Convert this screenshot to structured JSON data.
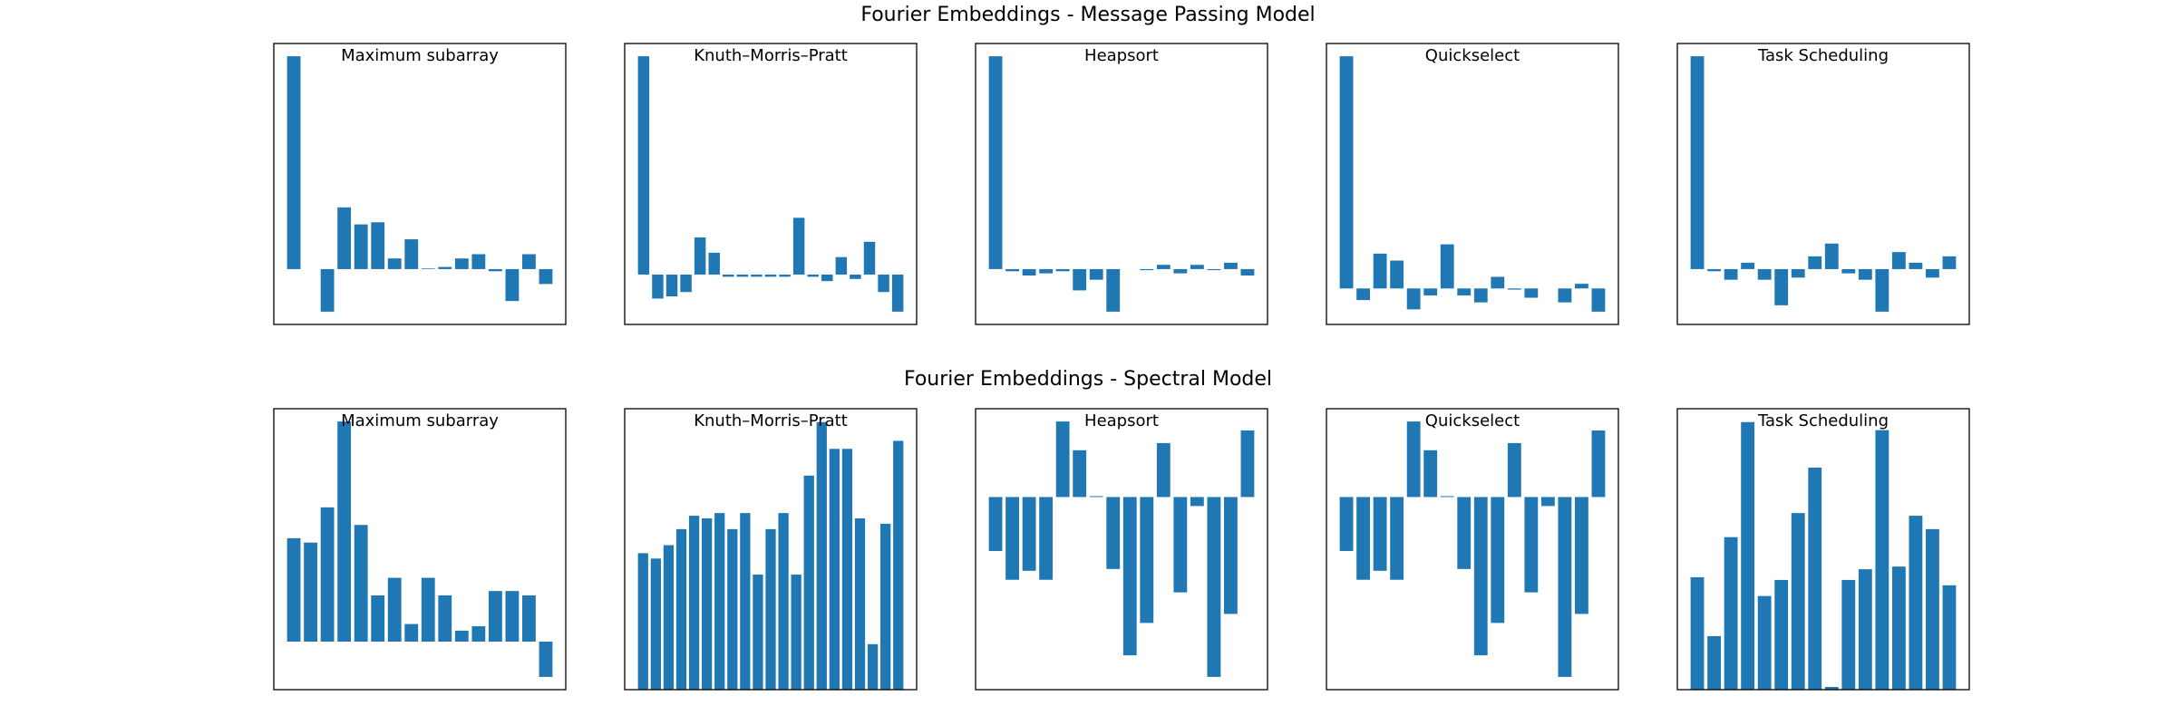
{
  "figure_titles": [
    "Fourier Embeddings - Message Passing Model",
    "Fourier Embeddings - Spectral Model"
  ],
  "chart_data": [
    {
      "type": "bar",
      "title": "Maximum subarray",
      "color": "#1f77b4",
      "ylim": [
        -0.26,
        1.06
      ],
      "values": [
        1.0,
        0,
        -0.2,
        0.29,
        0.21,
        0.22,
        0.05,
        0.14,
        0.003,
        0.01,
        0.05,
        0.07,
        -0.01,
        -0.15,
        0.07,
        -0.07
      ]
    },
    {
      "type": "bar",
      "title": "Knuth–Morris–Pratt",
      "color": "#1f77b4",
      "ylim": [
        -0.2285,
        1.0585
      ],
      "values": [
        1.0,
        -0.11,
        -0.1,
        -0.08,
        0.17,
        0.1,
        -0.01,
        -0.01,
        -0.01,
        -0.01,
        -0.01,
        0.26,
        -0.01,
        -0.03,
        0.08,
        -0.02,
        0.15,
        -0.08,
        -0.17
      ]
    },
    {
      "type": "bar",
      "title": "Heapsort",
      "color": "#1f77b4",
      "ylim": [
        -0.26,
        1.06
      ],
      "values": [
        1.0,
        -0.01,
        -0.03,
        -0.02,
        -0.01,
        -0.1,
        -0.05,
        -0.2,
        0,
        -0.005,
        0.02,
        -0.02,
        0.02,
        -0.005,
        0.03,
        -0.03
      ]
    },
    {
      "type": "bar",
      "title": "Quickselect",
      "color": "#1f77b4",
      "ylim": [
        -0.155,
        1.055
      ],
      "values": [
        1.0,
        -0.05,
        0.15,
        0.12,
        -0.09,
        -0.03,
        0.19,
        -0.03,
        -0.06,
        0.05,
        -0.005,
        -0.04,
        0,
        -0.06,
        0.02,
        -0.1
      ]
    },
    {
      "type": "bar",
      "title": "Task Scheduling",
      "color": "#1f77b4",
      "ylim": [
        -0.26,
        1.06
      ],
      "values": [
        1.0,
        -0.01,
        -0.05,
        0.03,
        -0.05,
        -0.17,
        -0.04,
        0.06,
        0.12,
        -0.02,
        -0.05,
        -0.2,
        0.08,
        0.03,
        -0.04,
        0.06
      ]
    },
    {
      "type": "bar",
      "title": "Maximum subarray",
      "color": "#1f77b4",
      "ylim": [
        -0.218,
        1.058
      ],
      "values": [
        0.47,
        0.45,
        0.61,
        1.0,
        0.53,
        0.21,
        0.29,
        0.08,
        0.29,
        0.21,
        0.05,
        0.07,
        0.23,
        0.23,
        0.21,
        -0.16
      ]
    },
    {
      "type": "bar",
      "title": "Knuth–Morris–Pratt",
      "color": "#1f77b4",
      "ylim": [
        0,
        1.05
      ],
      "values": [
        0.51,
        0.49,
        0.54,
        0.6,
        0.65,
        0.64,
        0.66,
        0.6,
        0.66,
        0.43,
        0.6,
        0.66,
        0.43,
        0.8,
        1.0,
        0.9,
        0.9,
        0.64,
        0.17,
        0.62,
        0.93
      ]
    },
    {
      "type": "bar",
      "title": "Heapsort",
      "color": "#1f77b4",
      "ylim": [
        -1.071,
        0.491
      ],
      "values": [
        -0.3,
        -0.46,
        -0.41,
        -0.46,
        0.42,
        0.26,
        0.005,
        -0.4,
        -0.88,
        -0.7,
        0.3,
        -0.53,
        -0.05,
        -1.0,
        -0.65,
        0.37
      ]
    },
    {
      "type": "bar",
      "title": "Quickselect",
      "color": "#1f77b4",
      "ylim": [
        -1.071,
        0.491
      ],
      "values": [
        -0.3,
        -0.46,
        -0.41,
        -0.46,
        0.42,
        0.26,
        0.005,
        -0.4,
        -0.88,
        -0.7,
        0.3,
        -0.53,
        -0.05,
        -1.0,
        -0.65,
        0.37
      ]
    },
    {
      "type": "bar",
      "title": "Task Scheduling",
      "color": "#1f77b4",
      "ylim": [
        0,
        1.05
      ],
      "values": [
        0.42,
        0.2,
        0.57,
        1.0,
        0.35,
        0.41,
        0.66,
        0.83,
        0.01,
        0.41,
        0.45,
        0.97,
        0.46,
        0.65,
        0.6,
        0.39
      ]
    }
  ]
}
